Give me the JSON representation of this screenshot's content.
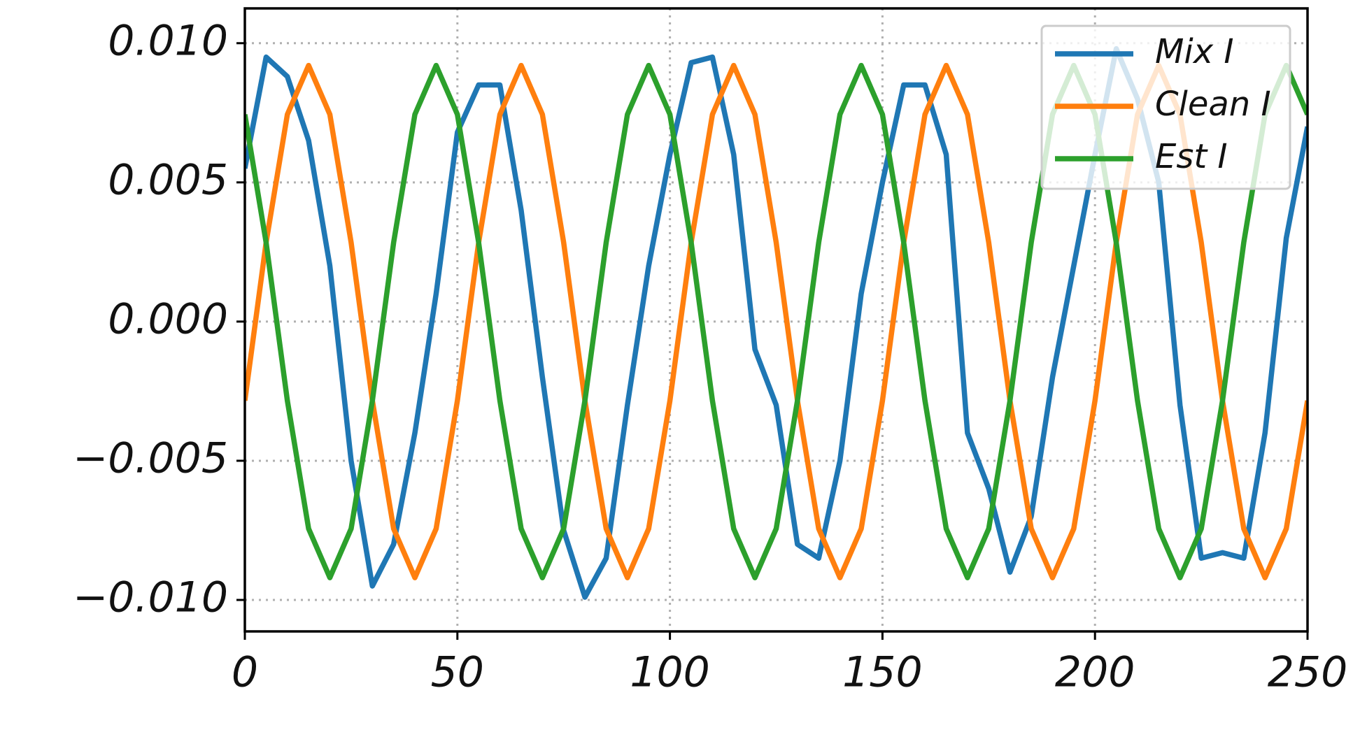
{
  "chart_data": {
    "type": "line",
    "x": [
      0,
      5,
      10,
      15,
      20,
      25,
      30,
      35,
      40,
      45,
      50,
      55,
      60,
      65,
      70,
      75,
      80,
      85,
      90,
      95,
      100,
      105,
      110,
      115,
      120,
      125,
      130,
      135,
      140,
      145,
      150,
      155,
      160,
      165,
      170,
      175,
      180,
      185,
      190,
      195,
      200,
      205,
      210,
      215,
      220,
      225,
      230,
      235,
      240,
      245,
      250
    ],
    "series": [
      {
        "name": "Mix I",
        "color": "#1f77b4",
        "values": [
          0.0055,
          0.0095,
          0.0088,
          0.0065,
          0.002,
          -0.005,
          -0.0095,
          -0.008,
          -0.004,
          0.001,
          0.0068,
          0.0085,
          0.0085,
          0.004,
          -0.002,
          -0.0075,
          -0.0099,
          -0.0085,
          -0.003,
          0.002,
          0.006,
          0.0093,
          0.0095,
          0.006,
          -0.001,
          -0.003,
          -0.008,
          -0.0085,
          -0.005,
          0.001,
          0.005,
          0.0085,
          0.0085,
          0.006,
          -0.004,
          -0.006,
          -0.009,
          -0.007,
          -0.002,
          0.002,
          0.006,
          0.0098,
          0.008,
          0.005,
          -0.003,
          -0.0085,
          -0.0083,
          -0.0085,
          -0.004,
          0.003,
          0.007
        ]
      },
      {
        "name": "Clean I",
        "color": "#ff7f0e",
        "values": [
          -0.00284,
          0.00284,
          0.00744,
          0.0092,
          0.00744,
          0.00284,
          -0.00284,
          -0.00744,
          -0.0092,
          -0.00744,
          -0.00284,
          0.00284,
          0.00744,
          0.0092,
          0.00744,
          0.00284,
          -0.00284,
          -0.00744,
          -0.0092,
          -0.00744,
          -0.00284,
          0.00284,
          0.00744,
          0.0092,
          0.00744,
          0.00284,
          -0.00284,
          -0.00744,
          -0.0092,
          -0.00744,
          -0.00284,
          0.00284,
          0.00744,
          0.0092,
          0.00744,
          0.00284,
          -0.00284,
          -0.00744,
          -0.0092,
          -0.00744,
          -0.00284,
          0.00284,
          0.00744,
          0.0092,
          0.00744,
          0.00284,
          -0.00284,
          -0.00744,
          -0.0092,
          -0.00744,
          -0.00284
        ]
      },
      {
        "name": "Est I",
        "color": "#2ca02c",
        "values": [
          0.00744,
          0.00284,
          -0.00284,
          -0.00744,
          -0.0092,
          -0.00744,
          -0.00284,
          0.00284,
          0.00744,
          0.0092,
          0.00744,
          0.00284,
          -0.00284,
          -0.00744,
          -0.0092,
          -0.00744,
          -0.00284,
          0.00284,
          0.00744,
          0.0092,
          0.00744,
          0.00284,
          -0.00284,
          -0.00744,
          -0.0092,
          -0.00744,
          -0.00284,
          0.00284,
          0.00744,
          0.0092,
          0.00744,
          0.00284,
          -0.00284,
          -0.00744,
          -0.0092,
          -0.00744,
          -0.00284,
          0.00284,
          0.00744,
          0.0092,
          0.00744,
          0.00284,
          -0.00284,
          -0.00744,
          -0.0092,
          -0.00744,
          -0.00284,
          0.00284,
          0.00744,
          0.0092,
          0.00744
        ]
      }
    ],
    "xlim": [
      0,
      250
    ],
    "xticks": [
      0,
      50,
      100,
      150,
      200,
      250
    ],
    "ylim": [
      -0.01113,
      0.01125
    ],
    "yticks": [
      {
        "value": -0.01,
        "label": "−0.010"
      },
      {
        "value": -0.005,
        "label": "−0.005"
      },
      {
        "value": 0,
        "label": "0.000"
      },
      {
        "value": 0.005,
        "label": "0.005"
      },
      {
        "value": 0.01,
        "label": "0.010"
      }
    ],
    "grid": true,
    "legend": "upper right"
  }
}
